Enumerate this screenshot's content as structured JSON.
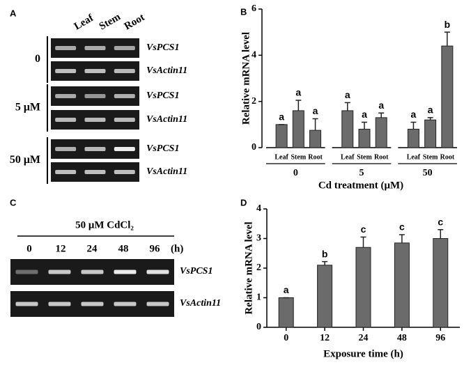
{
  "panels": {
    "A": {
      "label": "A",
      "columns": [
        "Leaf",
        "Stem",
        "Root"
      ],
      "groups": [
        {
          "label": "0",
          "genes": [
            "VsPCS1",
            "VsActin11"
          ]
        },
        {
          "label": "5 μM",
          "genes": [
            "VsPCS1",
            "VsActin11"
          ]
        },
        {
          "label": "50 μM",
          "genes": [
            "VsPCS1",
            "VsActin11"
          ]
        }
      ]
    },
    "C": {
      "label": "C",
      "treatment": "50 μM CdCl₂",
      "times": [
        "0",
        "12",
        "24",
        "48",
        "96"
      ],
      "unit": "(h)",
      "genes": [
        "VsPCS1",
        "VsActin11"
      ]
    }
  },
  "chart_data": [
    {
      "type": "bar",
      "panel_label": "B",
      "ylabel": "Relative mRNA level",
      "xlabel": "Cd treatment (μM)",
      "categories": [
        "Leaf",
        "Stem",
        "Root",
        "Leaf",
        "Stem",
        "Root",
        "Leaf",
        "Stem",
        "Root"
      ],
      "groups": [
        "0",
        "5",
        "50"
      ],
      "values": [
        1.0,
        1.6,
        0.75,
        1.6,
        0.8,
        1.3,
        0.8,
        1.2,
        4.4
      ],
      "errors": [
        0,
        0.45,
        0.5,
        0.35,
        0.3,
        0.2,
        0.3,
        0.1,
        0.6
      ],
      "annotations": [
        "a",
        "a",
        "a",
        "a",
        "a",
        "a",
        "a",
        "a",
        "b"
      ],
      "color": "#6b6b6b",
      "ylim": [
        0,
        6
      ],
      "yticks": [
        0,
        2,
        4,
        6
      ]
    },
    {
      "type": "bar",
      "panel_label": "D",
      "ylabel": "Relative mRNA level",
      "xlabel": "Exposure time (h)",
      "categories": [
        "0",
        "12",
        "24",
        "48",
        "96"
      ],
      "values": [
        1.0,
        2.1,
        2.7,
        2.85,
        3.0
      ],
      "errors": [
        0,
        0.12,
        0.35,
        0.28,
        0.3
      ],
      "annotations": [
        "a",
        "b",
        "c",
        "c",
        "c"
      ],
      "color": "#6b6b6b",
      "ylim": [
        0,
        4
      ],
      "yticks": [
        0,
        1,
        2,
        3,
        4
      ]
    }
  ]
}
